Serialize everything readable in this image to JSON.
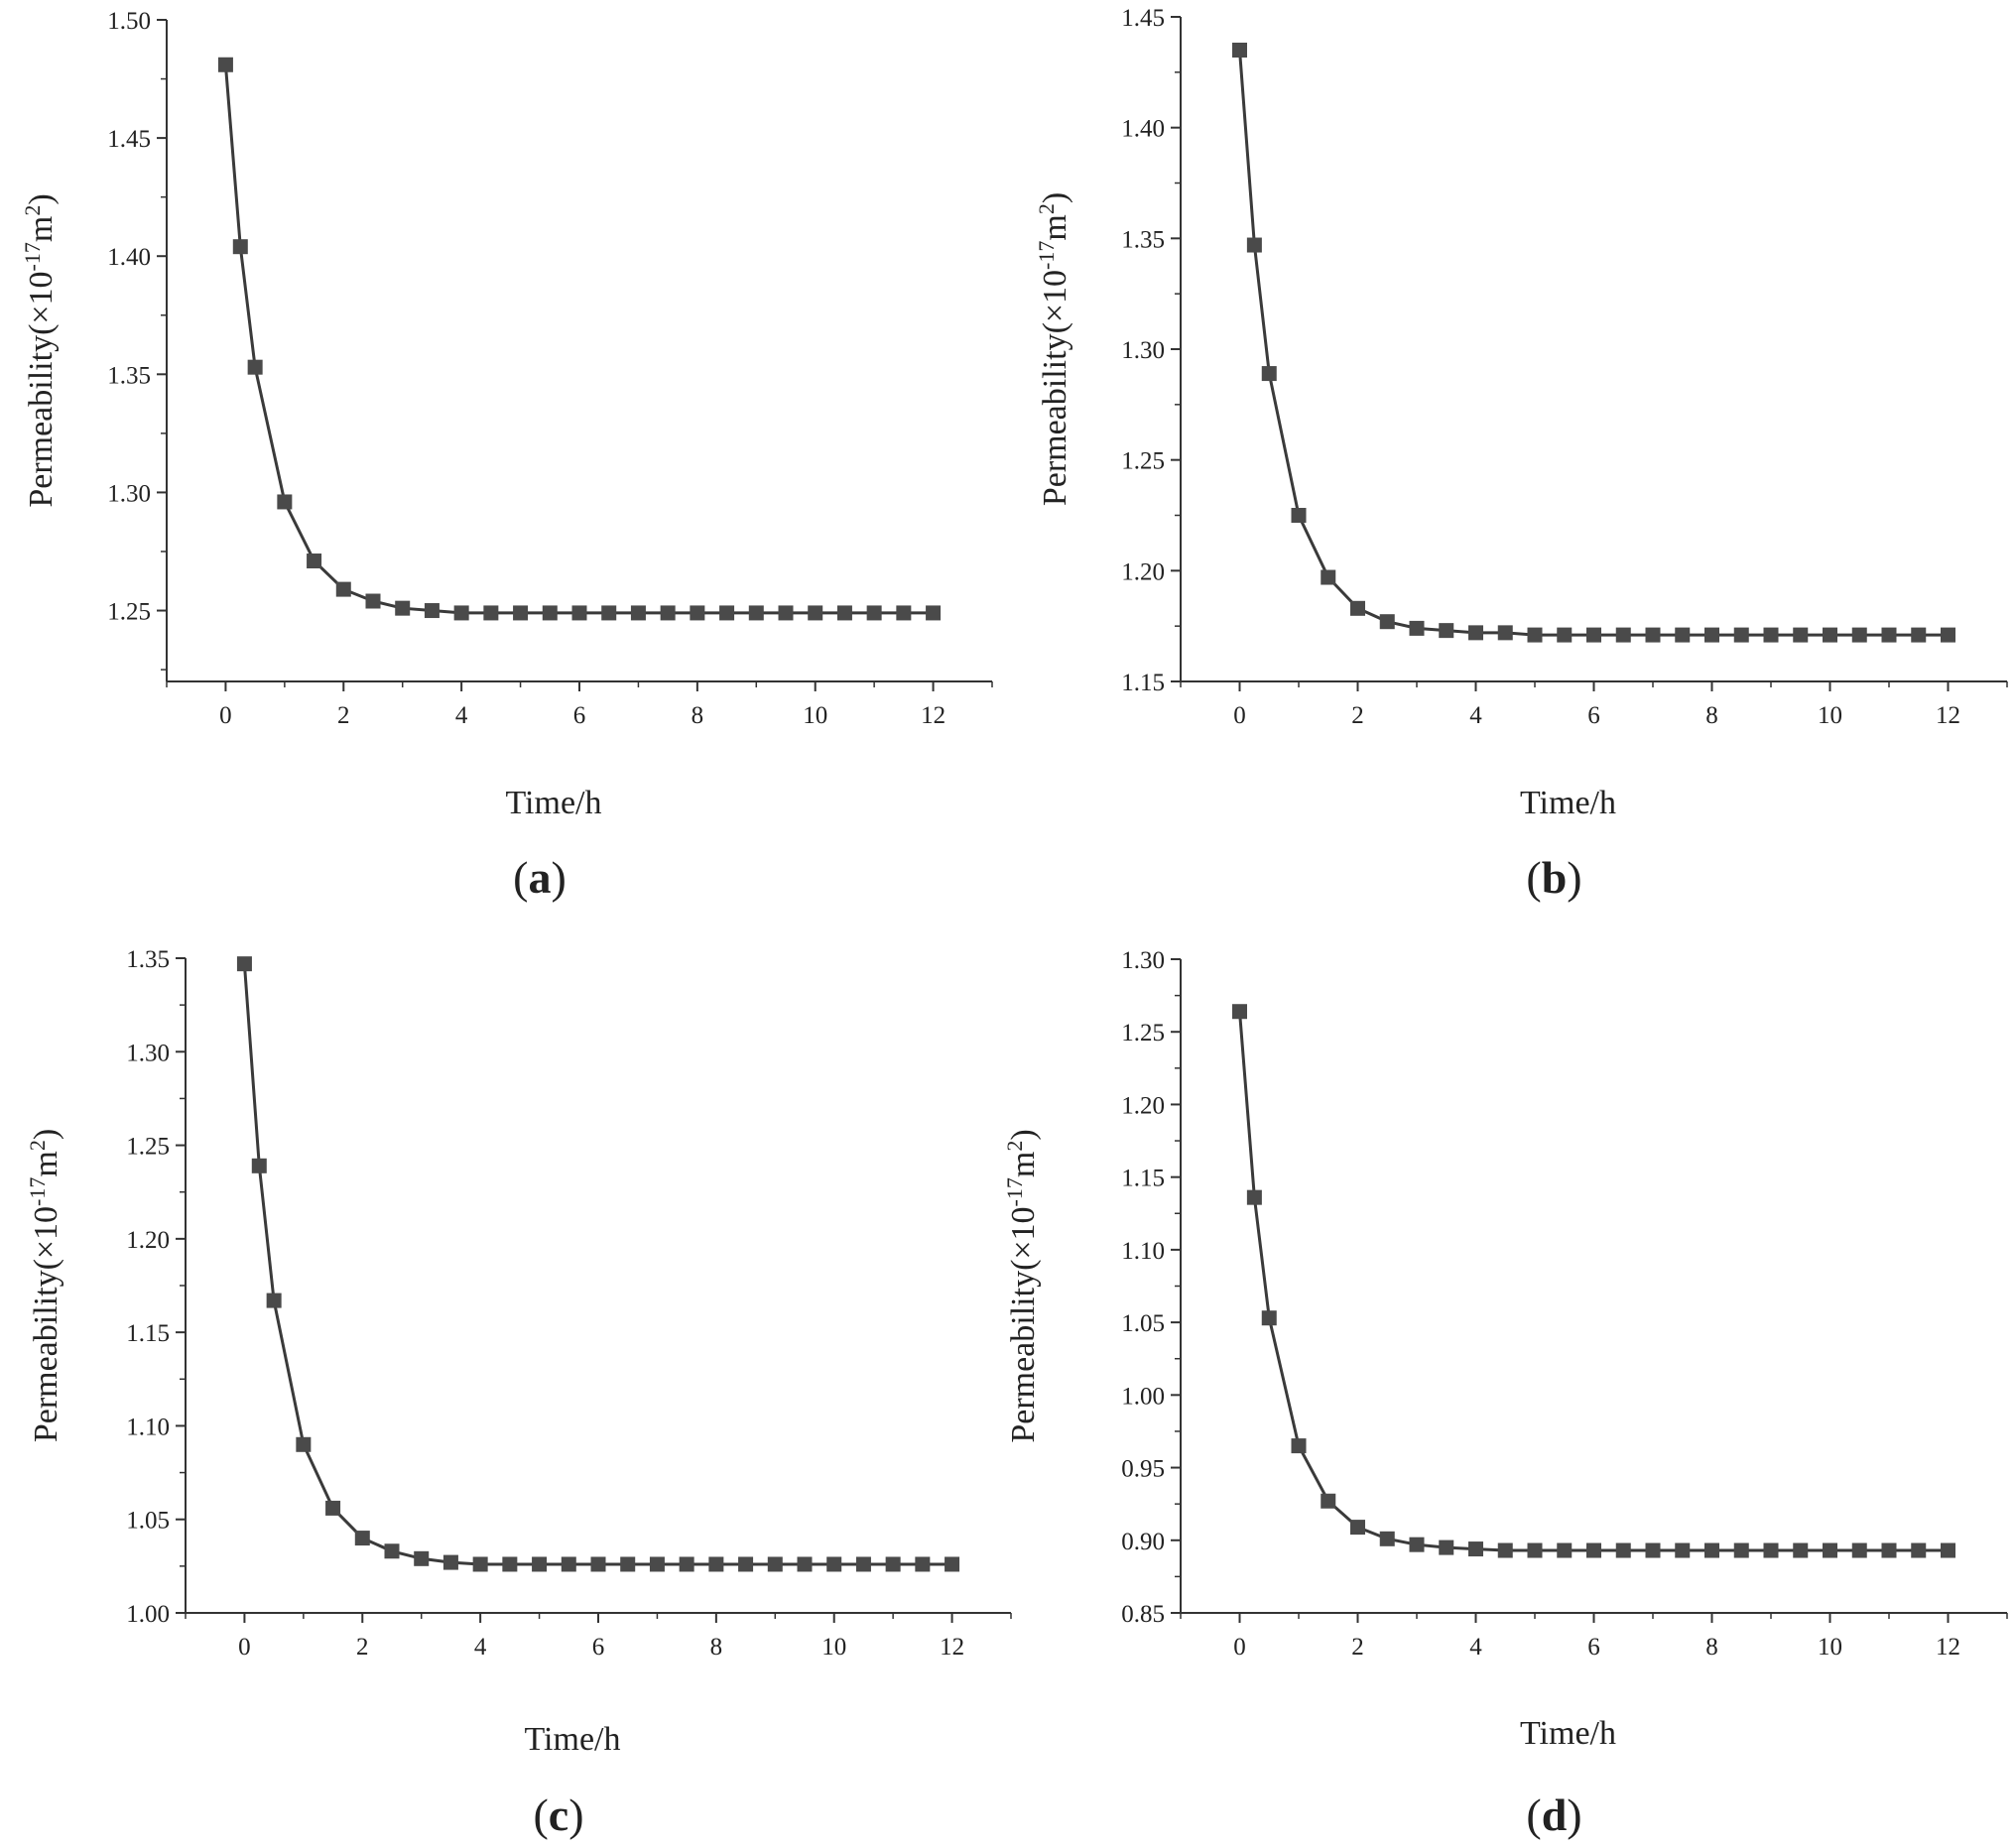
{
  "chart_data": [
    {
      "type": "line",
      "panel_label": "a",
      "xlabel": "Time/h",
      "ylabel": {
        "base": "Permeability(×10",
        "exp1": "-17",
        "mid": "m",
        "exp2": "2",
        "end": ")"
      },
      "xlim": [
        -1,
        13
      ],
      "ylim": [
        1.22,
        1.5
      ],
      "xticks": [
        0,
        2,
        4,
        6,
        8,
        10,
        12
      ],
      "yticks": [
        1.25,
        1.3,
        1.35,
        1.4,
        1.45,
        1.5
      ],
      "ytick_labels": [
        "1.25",
        "1.30",
        "1.35",
        "1.40",
        "1.45",
        "1.50"
      ],
      "x": [
        0,
        0.25,
        0.5,
        1,
        1.5,
        2,
        2.5,
        3,
        3.5,
        4,
        4.5,
        5,
        5.5,
        6,
        6.5,
        7,
        7.5,
        8,
        8.5,
        9,
        9.5,
        10,
        10.5,
        11,
        11.5,
        12
      ],
      "series": [
        {
          "values": [
            1.481,
            1.404,
            1.353,
            1.296,
            1.271,
            1.259,
            1.254,
            1.251,
            1.25,
            1.249,
            1.249,
            1.249,
            1.249,
            1.249,
            1.249,
            1.249,
            1.249,
            1.249,
            1.249,
            1.249,
            1.249,
            1.249,
            1.249,
            1.249,
            1.249,
            1.249
          ]
        }
      ],
      "marker": "square",
      "color": "#4a4a4a"
    },
    {
      "type": "line",
      "panel_label": "b",
      "xlabel": "Time/h",
      "ylabel": {
        "base": "Permeability(×10",
        "exp1": "-17",
        "mid": "m",
        "exp2": "2",
        "end": ")"
      },
      "xlim": [
        -1,
        13
      ],
      "ylim": [
        1.15,
        1.45
      ],
      "xticks": [
        0,
        2,
        4,
        6,
        8,
        10,
        12
      ],
      "yticks": [
        1.15,
        1.2,
        1.25,
        1.3,
        1.35,
        1.4,
        1.45
      ],
      "ytick_labels": [
        "1.15",
        "1.20",
        "1.25",
        "1.30",
        "1.35",
        "1.40",
        "1.45"
      ],
      "x": [
        0,
        0.25,
        0.5,
        1,
        1.5,
        2,
        2.5,
        3,
        3.5,
        4,
        4.5,
        5,
        5.5,
        6,
        6.5,
        7,
        7.5,
        8,
        8.5,
        9,
        9.5,
        10,
        10.5,
        11,
        11.5,
        12
      ],
      "series": [
        {
          "values": [
            1.435,
            1.347,
            1.289,
            1.225,
            1.197,
            1.183,
            1.177,
            1.174,
            1.173,
            1.172,
            1.172,
            1.171,
            1.171,
            1.171,
            1.171,
            1.171,
            1.171,
            1.171,
            1.171,
            1.171,
            1.171,
            1.171,
            1.171,
            1.171,
            1.171,
            1.171
          ]
        }
      ],
      "marker": "square",
      "color": "#4a4a4a"
    },
    {
      "type": "line",
      "panel_label": "c",
      "xlabel": "Time/h",
      "ylabel": {
        "base": "Permeability(×10",
        "exp1": "-17",
        "mid": "m",
        "exp2": "2",
        "end": ")"
      },
      "xlim": [
        -1,
        13
      ],
      "ylim": [
        1.0,
        1.35
      ],
      "xticks": [
        0,
        2,
        4,
        6,
        8,
        10,
        12
      ],
      "yticks": [
        1.0,
        1.05,
        1.1,
        1.15,
        1.2,
        1.25,
        1.3,
        1.35
      ],
      "ytick_labels": [
        "1.00",
        "1.05",
        "1.10",
        "1.15",
        "1.20",
        "1.25",
        "1.30",
        "1.35"
      ],
      "x": [
        0,
        0.25,
        0.5,
        1,
        1.5,
        2,
        2.5,
        3,
        3.5,
        4,
        4.5,
        5,
        5.5,
        6,
        6.5,
        7,
        7.5,
        8,
        8.5,
        9,
        9.5,
        10,
        10.5,
        11,
        11.5,
        12
      ],
      "series": [
        {
          "values": [
            1.347,
            1.239,
            1.167,
            1.09,
            1.056,
            1.04,
            1.033,
            1.029,
            1.027,
            1.026,
            1.026,
            1.026,
            1.026,
            1.026,
            1.026,
            1.026,
            1.026,
            1.026,
            1.026,
            1.026,
            1.026,
            1.026,
            1.026,
            1.026,
            1.026,
            1.026
          ]
        }
      ],
      "marker": "square",
      "color": "#4a4a4a"
    },
    {
      "type": "line",
      "panel_label": "d",
      "xlabel": "Time/h",
      "ylabel": {
        "base": "Permeability(×10",
        "exp1": "-17",
        "mid": "m",
        "exp2": "2",
        "end": ")"
      },
      "xlim": [
        -1,
        13
      ],
      "ylim": [
        0.85,
        1.3
      ],
      "xticks": [
        0,
        2,
        4,
        6,
        8,
        10,
        12
      ],
      "yticks": [
        0.85,
        0.9,
        0.95,
        1.0,
        1.05,
        1.1,
        1.15,
        1.2,
        1.25,
        1.3
      ],
      "ytick_labels": [
        "0.85",
        "0.90",
        "0.95",
        "1.00",
        "1.05",
        "1.10",
        "1.15",
        "1.20",
        "1.25",
        "1.30"
      ],
      "x": [
        0,
        0.25,
        0.5,
        1,
        1.5,
        2,
        2.5,
        3,
        3.5,
        4,
        4.5,
        5,
        5.5,
        6,
        6.5,
        7,
        7.5,
        8,
        8.5,
        9,
        9.5,
        10,
        10.5,
        11,
        11.5,
        12
      ],
      "series": [
        {
          "values": [
            1.264,
            1.136,
            1.053,
            0.965,
            0.927,
            0.909,
            0.901,
            0.897,
            0.895,
            0.894,
            0.893,
            0.893,
            0.893,
            0.893,
            0.893,
            0.893,
            0.893,
            0.893,
            0.893,
            0.893,
            0.893,
            0.893,
            0.893,
            0.893,
            0.893,
            0.893
          ]
        }
      ],
      "marker": "square",
      "color": "#4a4a4a"
    }
  ]
}
